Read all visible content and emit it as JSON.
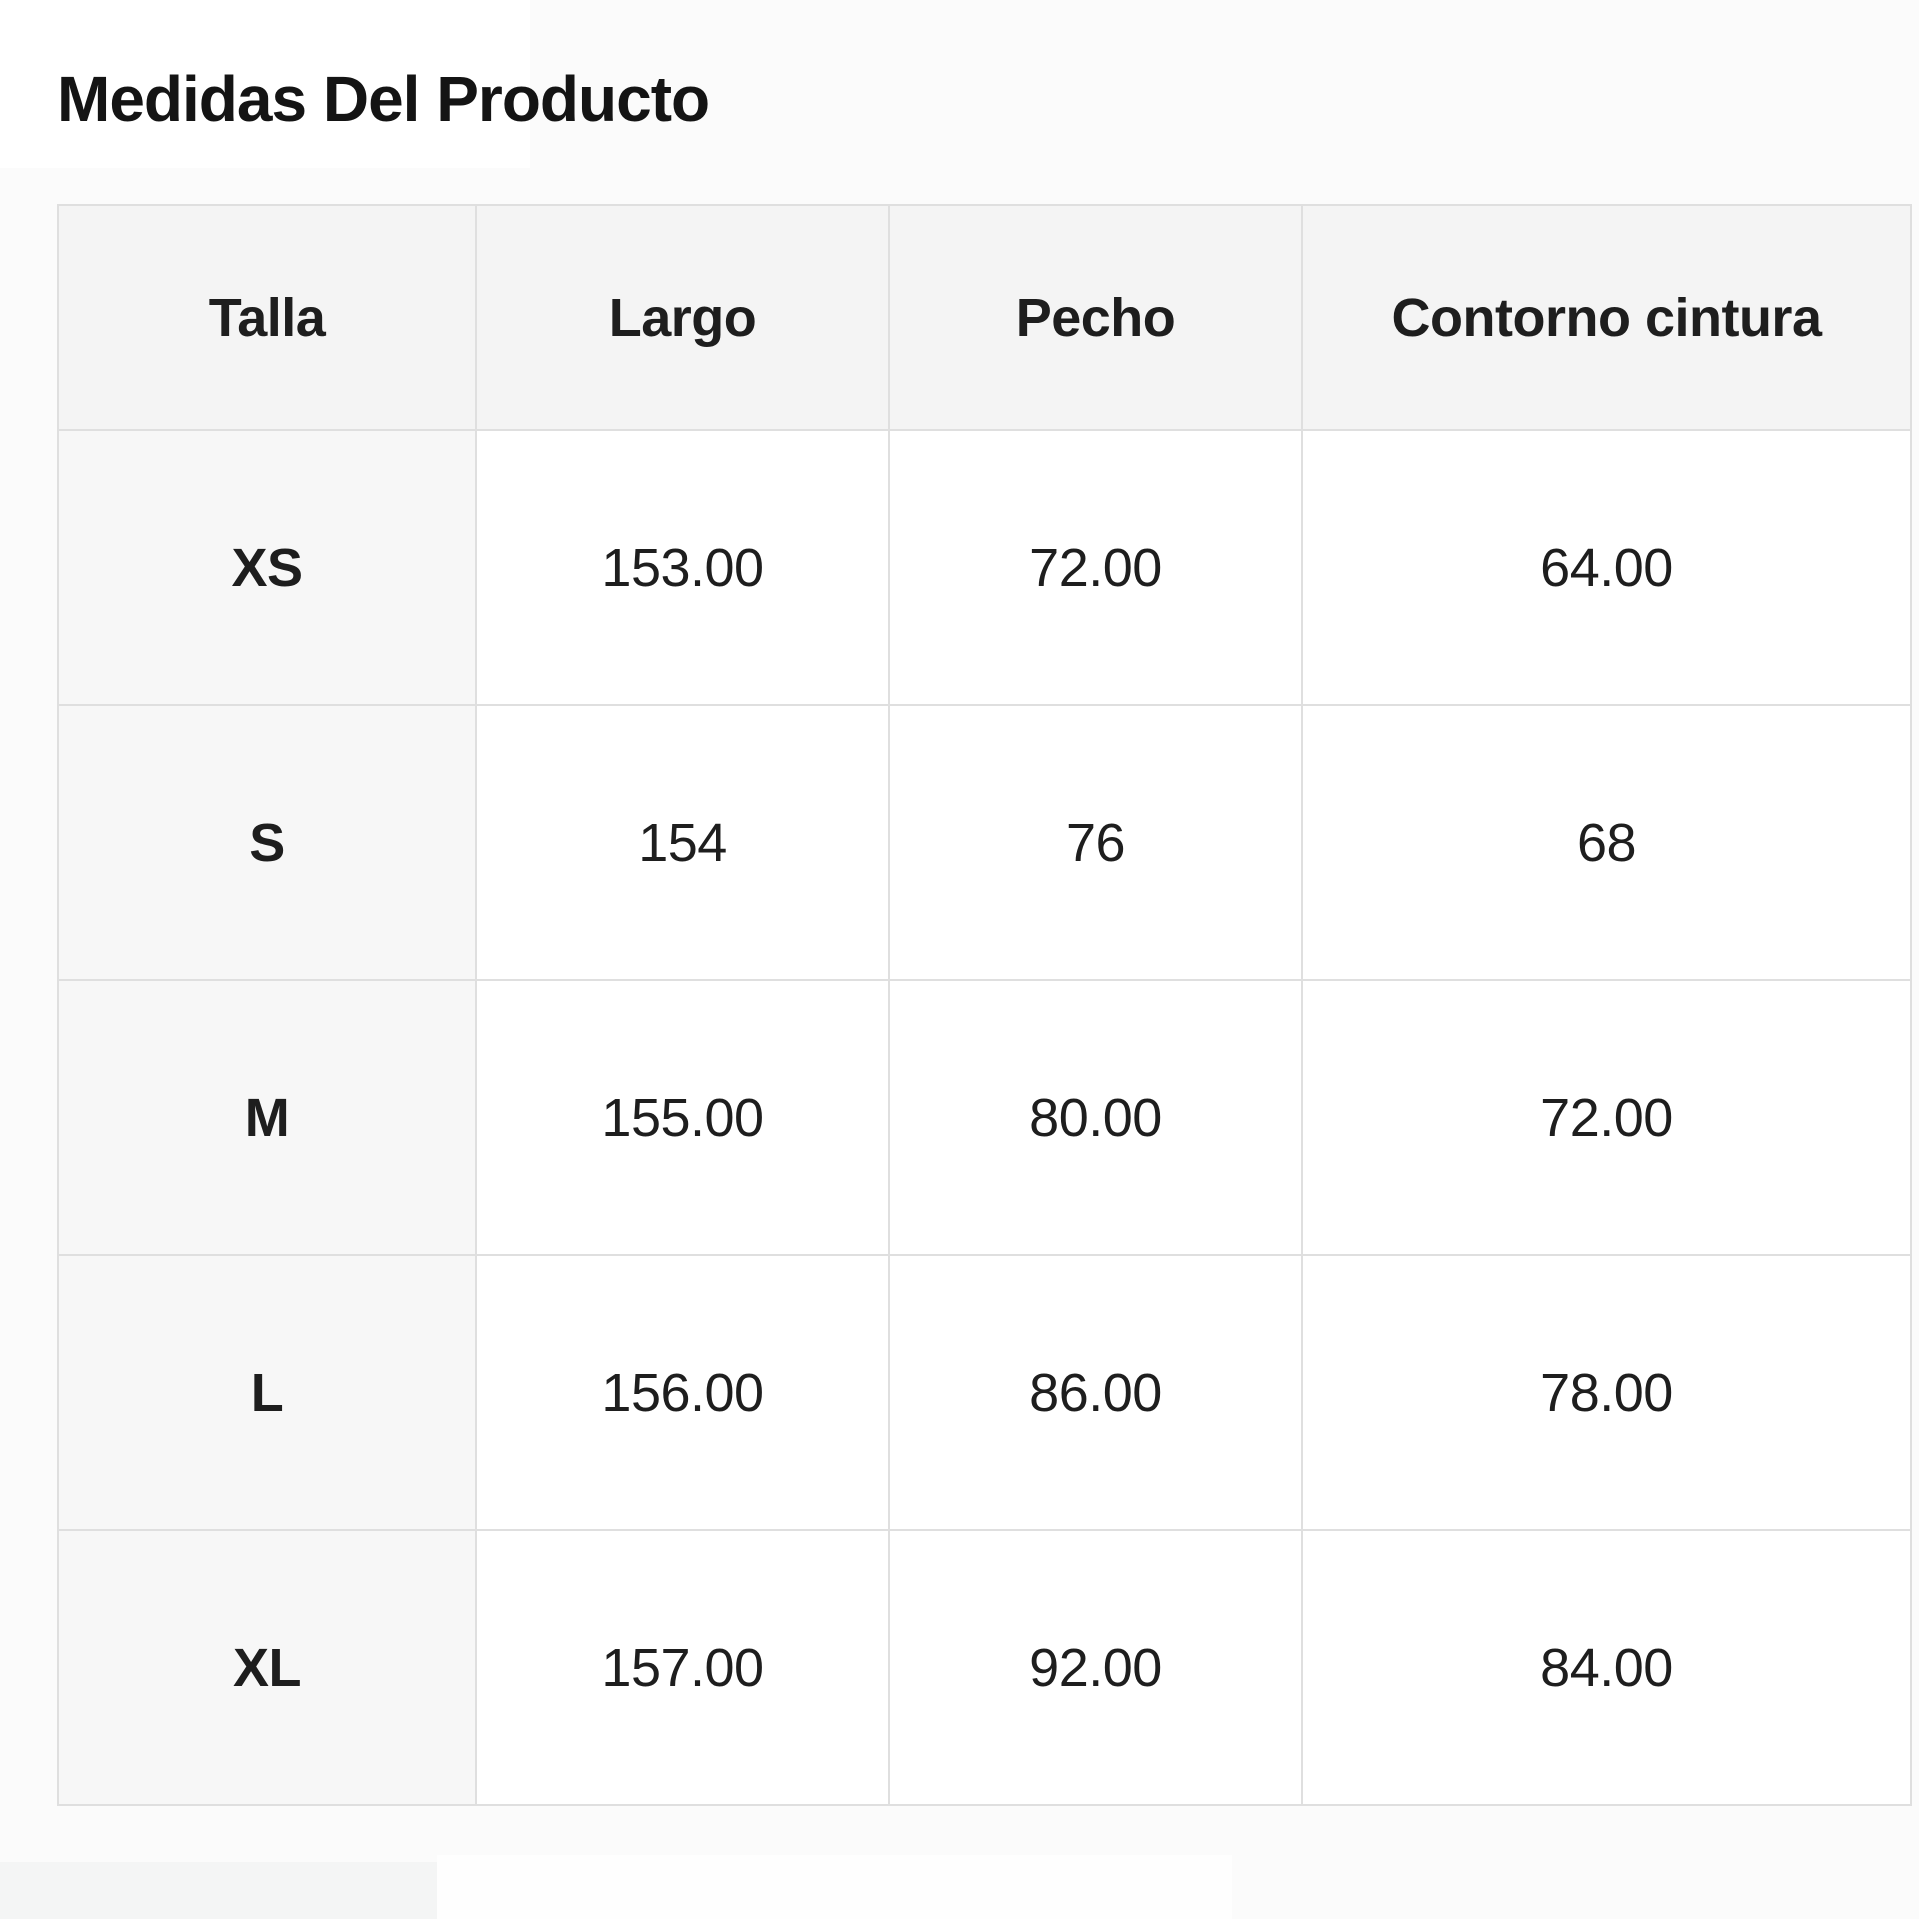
{
  "page": {
    "title": "Medidas Del Producto"
  },
  "size_table": {
    "columns": [
      "Talla",
      "Largo",
      "Pecho",
      "Contorno cintura"
    ],
    "rows": [
      {
        "size": "XS",
        "values": [
          "153.00",
          "72.00",
          "64.00"
        ]
      },
      {
        "size": "S",
        "values": [
          "154",
          "76",
          "68"
        ]
      },
      {
        "size": "M",
        "values": [
          "155.00",
          "80.00",
          "72.00"
        ]
      },
      {
        "size": "L",
        "values": [
          "156.00",
          "86.00",
          "78.00"
        ]
      },
      {
        "size": "XL",
        "values": [
          "157.00",
          "92.00",
          "84.00"
        ]
      }
    ]
  },
  "colors": {
    "page_background": "#fbfbfb",
    "header_cell_background": "#f4f4f4",
    "size_cell_background": "#f7f7f7",
    "data_cell_background": "#ffffff",
    "table_border": "#dfdfdf",
    "text": "#1e1e1e"
  }
}
